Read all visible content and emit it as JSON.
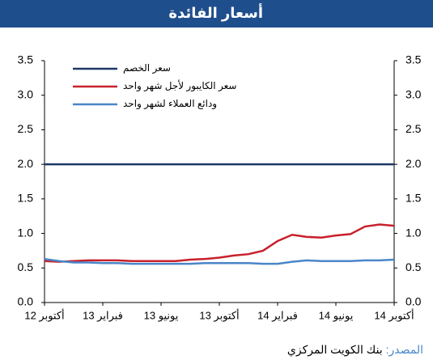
{
  "chart_data": {
    "type": "line",
    "title": "أسعار الفائدة",
    "categories": [
      "أكتوبر 12",
      null,
      null,
      null,
      "فبراير 13",
      null,
      null,
      null,
      "يونيو 13",
      null,
      null,
      null,
      "أكتوبر 13",
      null,
      null,
      null,
      "فبراير 14",
      null,
      null,
      null,
      "يونيو 14",
      null,
      null,
      null,
      "أكتوبر 14"
    ],
    "series": [
      {
        "name": "سعر الخصم",
        "color": "#1f3864",
        "values": [
          2.0,
          2.0,
          2.0,
          2.0,
          2.0,
          2.0,
          2.0,
          2.0,
          2.0,
          2.0,
          2.0,
          2.0,
          2.0,
          2.0,
          2.0,
          2.0,
          2.0,
          2.0,
          2.0,
          2.0,
          2.0,
          2.0,
          2.0,
          2.0,
          2.0
        ]
      },
      {
        "name": "سعر الكايبور لأجل شهر واحد",
        "color": "#c8202c",
        "values": [
          0.6,
          0.59,
          0.6,
          0.61,
          0.61,
          0.61,
          0.6,
          0.6,
          0.6,
          0.6,
          0.62,
          0.63,
          0.65,
          0.68,
          0.7,
          0.75,
          0.89,
          0.98,
          0.95,
          0.94,
          0.97,
          0.99,
          1.1,
          1.13,
          1.11
        ]
      },
      {
        "name": "ودائع العملاء لشهر واحد",
        "color": "#4a86c8",
        "values": [
          0.63,
          0.6,
          0.58,
          0.58,
          0.57,
          0.57,
          0.56,
          0.56,
          0.56,
          0.56,
          0.56,
          0.57,
          0.57,
          0.57,
          0.57,
          0.56,
          0.56,
          0.59,
          0.61,
          0.6,
          0.6,
          0.6,
          0.61,
          0.61,
          0.62
        ]
      }
    ],
    "ylim": [
      0,
      3.5
    ],
    "yticks": [
      {
        "value": 0,
        "label": "0.0"
      },
      0.5,
      {
        "value": 1,
        "label": "1.0"
      },
      1.5,
      {
        "value": 2,
        "label": "2.0"
      },
      2.5,
      {
        "value": 3,
        "label": "3.0"
      },
      3.5
    ],
    "y2lim": [
      0,
      3.5
    ],
    "y2ticks": [
      {
        "value": 0,
        "label": "0.0"
      },
      0.5,
      {
        "value": 1,
        "label": "1.0"
      },
      1.5,
      {
        "value": 2,
        "label": "2.0"
      },
      2.5,
      {
        "value": 3,
        "label": "3.0"
      },
      3.5
    ],
    "legend": "upper left",
    "source_label": "المصدر:",
    "source": "بنك الكويت المركزي"
  }
}
